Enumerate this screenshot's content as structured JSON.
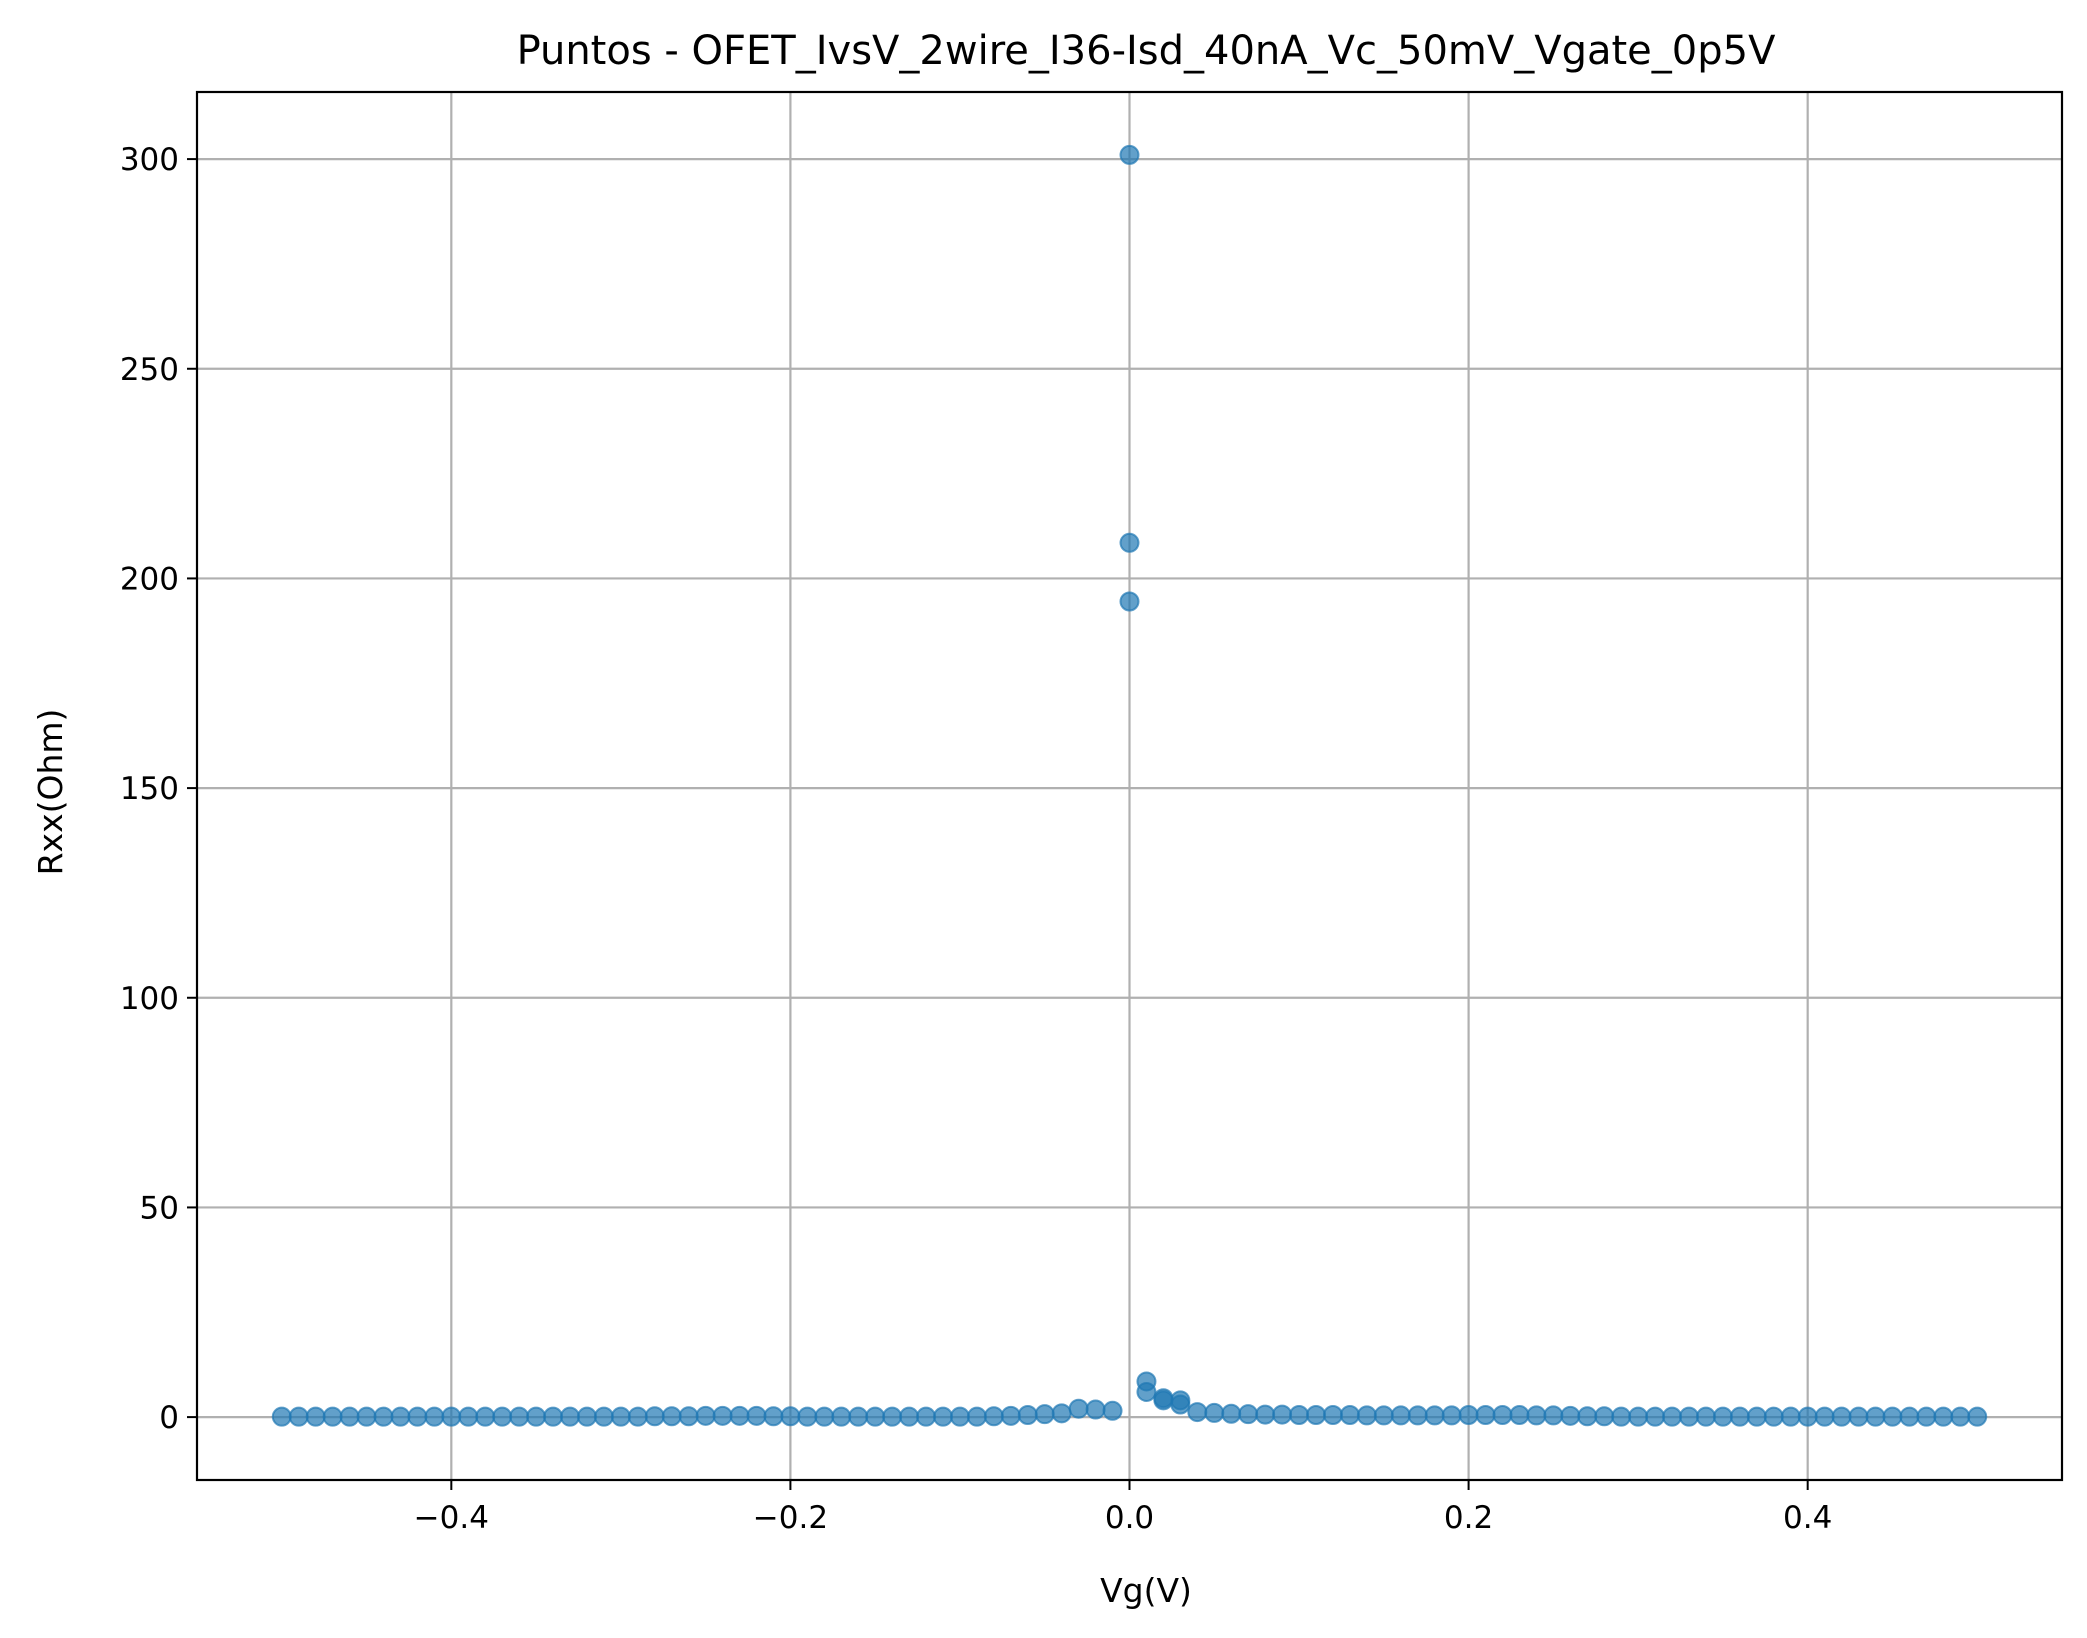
{
  "chart_data": {
    "type": "scatter",
    "title": "Puntos - OFET_IvsV_2wire_I36-Isd_40nA_Vc_50mV_Vgate_0p5V",
    "xlabel": "Vg(V)",
    "ylabel": "Rxx(Ohm)",
    "xlim": [
      -0.55,
      0.55
    ],
    "ylim": [
      -15,
      316
    ],
    "xticks": [
      -0.4,
      -0.2,
      0.0,
      0.2,
      0.4
    ],
    "xtick_labels": [
      "−0.4",
      "−0.2",
      "0.0",
      "0.2",
      "0.4"
    ],
    "yticks": [
      0,
      50,
      100,
      150,
      200,
      250,
      300
    ],
    "ytick_labels": [
      "0",
      "50",
      "100",
      "150",
      "200",
      "250",
      "300"
    ],
    "grid": true,
    "marker_color": "#1f77b4",
    "marker_alpha": 0.7,
    "series": [
      {
        "x": [
          -0.5,
          -0.49,
          -0.48,
          -0.47,
          -0.46,
          -0.45,
          -0.44,
          -0.43,
          -0.42,
          -0.41,
          -0.4,
          -0.39,
          -0.38,
          -0.37,
          -0.36,
          -0.35,
          -0.34,
          -0.33,
          -0.32,
          -0.31,
          -0.3,
          -0.29,
          -0.28,
          -0.27,
          -0.26,
          -0.25,
          -0.24,
          -0.23,
          -0.22,
          -0.21,
          -0.2,
          -0.19,
          -0.18,
          -0.17,
          -0.16,
          -0.15,
          -0.14,
          -0.13,
          -0.12,
          -0.11,
          -0.1,
          -0.09,
          -0.08,
          -0.07,
          -0.06,
          -0.05,
          -0.04,
          -0.03,
          -0.02,
          -0.01,
          0.0,
          0.0,
          0.0,
          0.01,
          0.01,
          0.02,
          0.02,
          0.03,
          0.03,
          0.04,
          0.05,
          0.06,
          0.07,
          0.08,
          0.09,
          0.1,
          0.11,
          0.12,
          0.13,
          0.14,
          0.15,
          0.16,
          0.17,
          0.18,
          0.19,
          0.2,
          0.21,
          0.22,
          0.23,
          0.24,
          0.25,
          0.26,
          0.27,
          0.28,
          0.29,
          0.3,
          0.31,
          0.32,
          0.33,
          0.34,
          0.35,
          0.36,
          0.37,
          0.38,
          0.39,
          0.4,
          0.41,
          0.42,
          0.43,
          0.44,
          0.45,
          0.46,
          0.47,
          0.48,
          0.49,
          0.5
        ],
        "y": [
          0.1,
          0.1,
          0.1,
          0.1,
          0.1,
          0.1,
          0.1,
          0.1,
          0.1,
          0.1,
          0.1,
          0.1,
          0.1,
          0.1,
          0.1,
          0.1,
          0.1,
          0.1,
          0.1,
          0.1,
          0.1,
          0.1,
          0.2,
          0.2,
          0.2,
          0.3,
          0.3,
          0.3,
          0.3,
          0.2,
          0.2,
          0.1,
          0.1,
          0.1,
          0.1,
          0.1,
          0.1,
          0.1,
          0.1,
          0.1,
          0.1,
          0.1,
          0.2,
          0.3,
          0.5,
          0.7,
          0.9,
          2.0,
          1.8,
          1.5,
          301.0,
          208.5,
          194.5,
          8.5,
          6.0,
          4.5,
          4.0,
          4.0,
          3.0,
          1.2,
          1.0,
          0.8,
          0.7,
          0.6,
          0.6,
          0.5,
          0.5,
          0.5,
          0.5,
          0.4,
          0.4,
          0.4,
          0.4,
          0.4,
          0.4,
          0.5,
          0.5,
          0.5,
          0.5,
          0.4,
          0.4,
          0.3,
          0.2,
          0.2,
          0.1,
          0.1,
          0.1,
          0.1,
          0.1,
          0.1,
          0.1,
          0.1,
          0.1,
          0.1,
          0.1,
          0.1,
          0.1,
          0.1,
          0.1,
          0.1,
          0.1,
          0.1,
          0.1,
          0.1,
          0.1,
          0.1
        ]
      }
    ]
  }
}
